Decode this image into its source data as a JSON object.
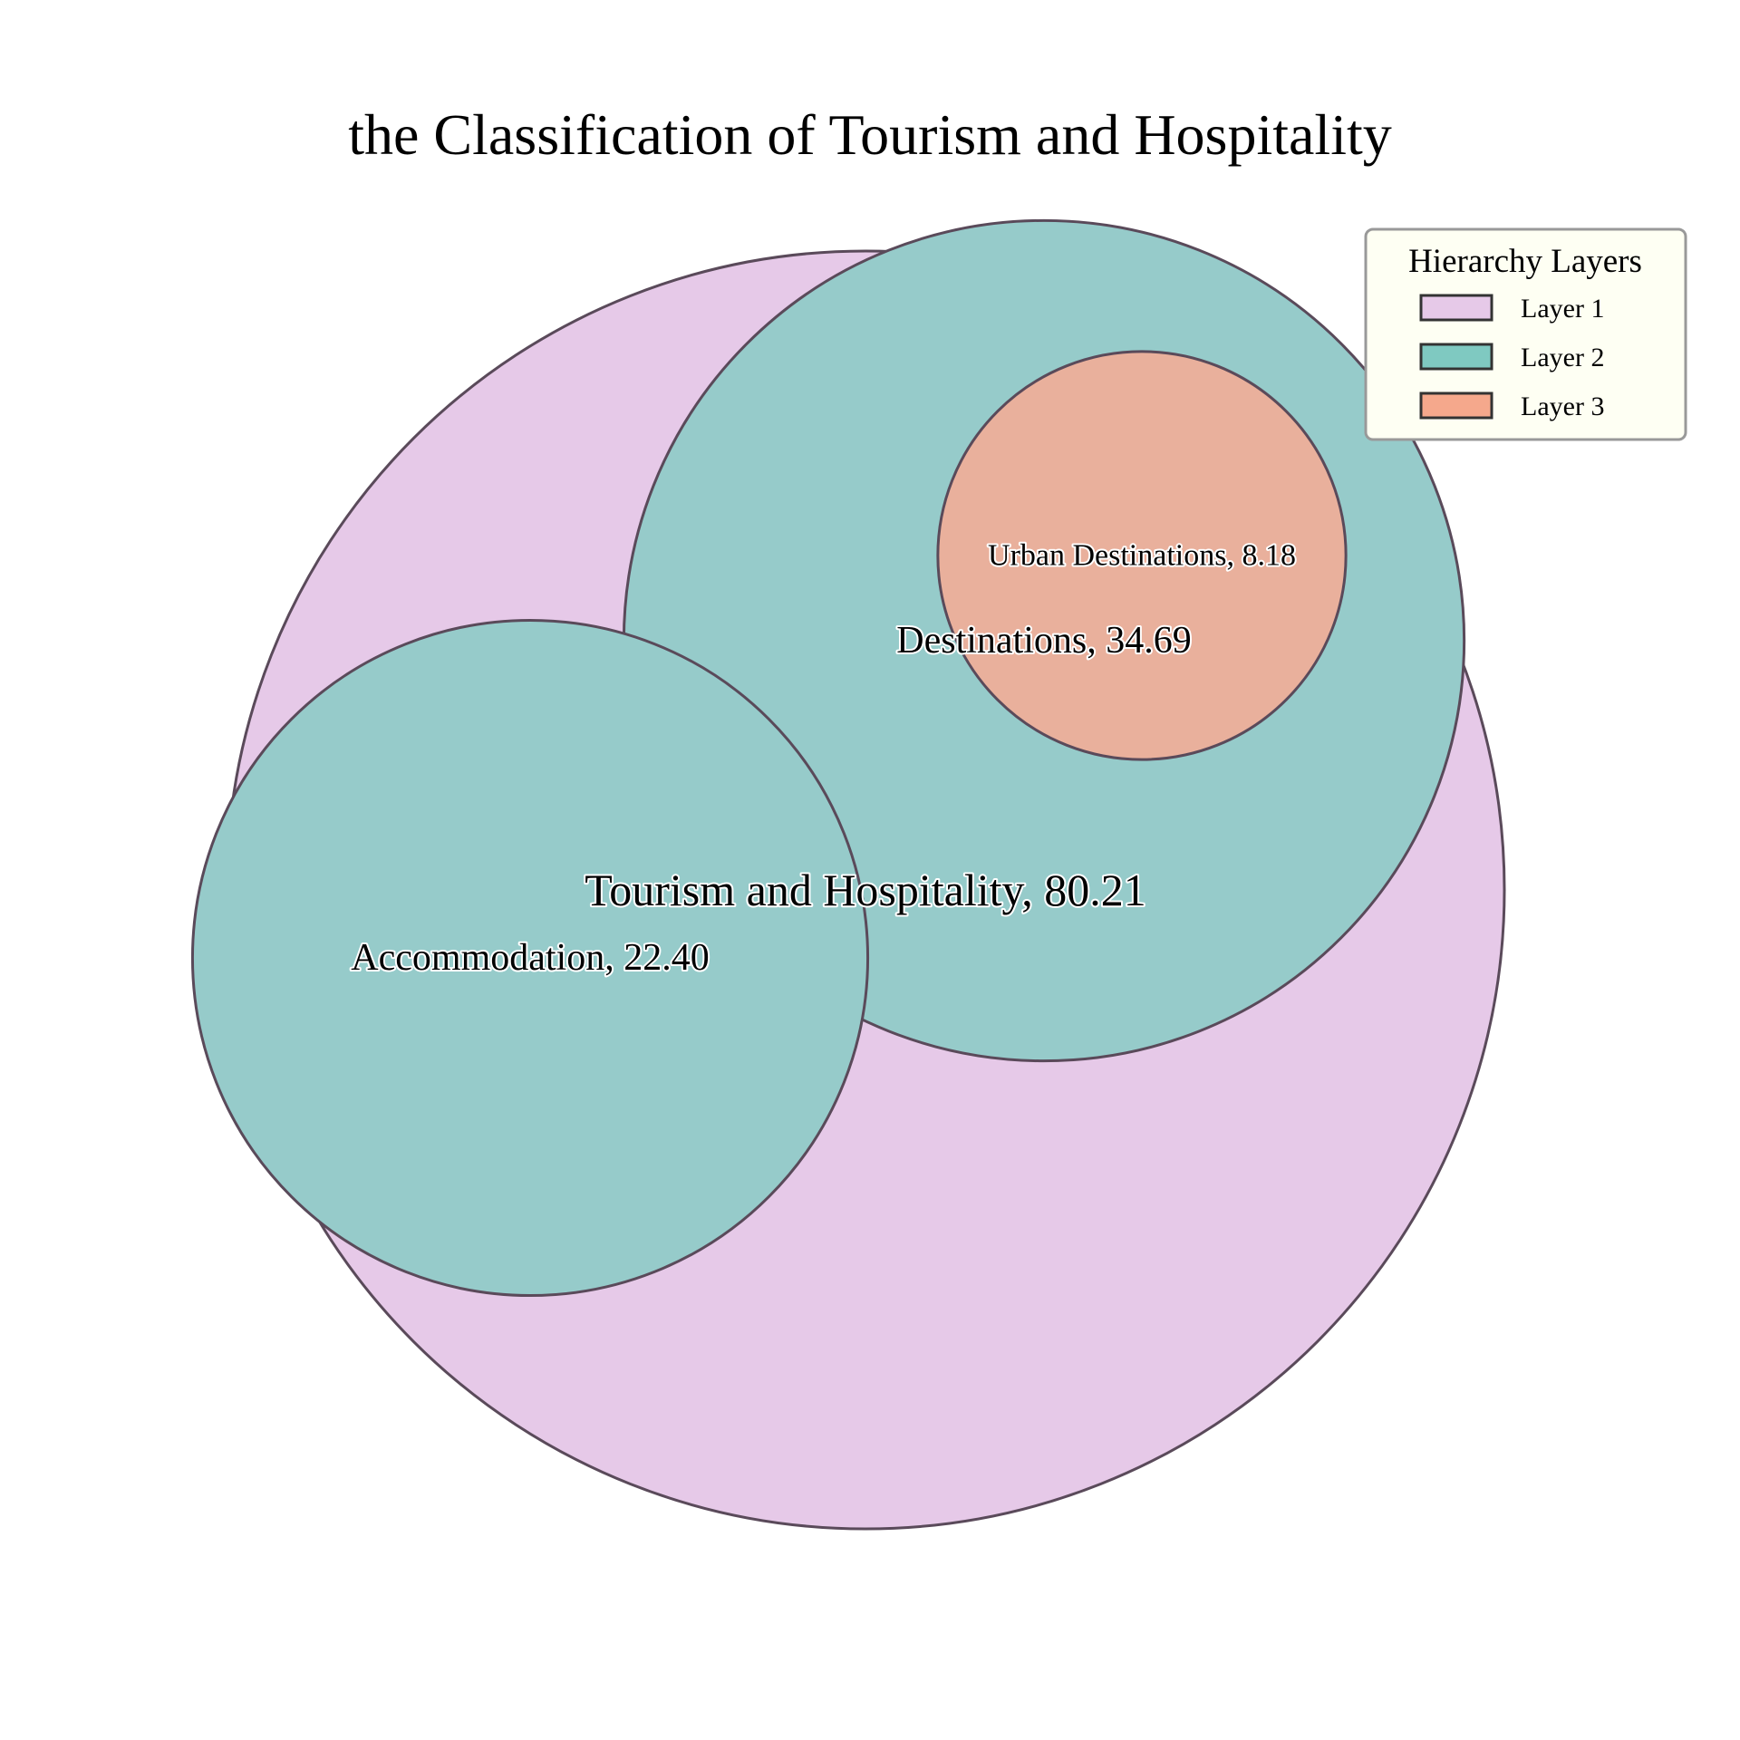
{
  "chart_data": {
    "type": "circle_packing",
    "title": "the Classification of Tourism and Hospitality",
    "nodes": [
      {
        "id": "root",
        "label": "Tourism and Hospitality, 80.21",
        "value": 80.21,
        "layer": 1,
        "parent": null
      },
      {
        "id": "destinations",
        "label": "Destinations, 34.69",
        "value": 34.69,
        "layer": 2,
        "parent": "root"
      },
      {
        "id": "accommodation",
        "label": "Accommodation, 22.40",
        "value": 22.4,
        "layer": 2,
        "parent": "root"
      },
      {
        "id": "urban",
        "label": "Urban Destinations, 8.18",
        "value": 8.18,
        "layer": 3,
        "parent": "destinations"
      }
    ],
    "legend": {
      "title": "Hierarchy Layers",
      "placement": "top-right",
      "items": [
        {
          "label": "Layer 1",
          "color": "#E6C9E8"
        },
        {
          "label": "Layer 2",
          "color": "#7FC9C1"
        },
        {
          "label": "Layer 3",
          "color": "#F5A88C"
        }
      ]
    },
    "fill_colors": {
      "1": "#E6C9E8",
      "2": "#96CBCA",
      "3": "#E9B09C"
    },
    "edge_color": "#5a4a5a"
  }
}
